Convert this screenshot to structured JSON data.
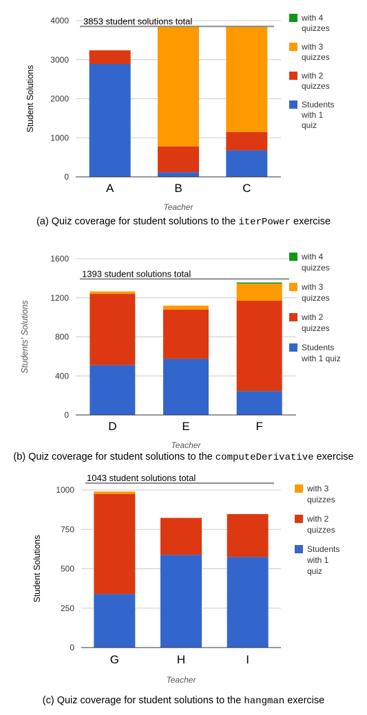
{
  "charts": [
    {
      "caption_prefix": "(a) Quiz coverage for student solutions to the ",
      "caption_code": "iterPower",
      "caption_suffix": " exercise",
      "chart_data": {
        "type": "bar",
        "stacked": true,
        "categories": [
          "A",
          "B",
          "C"
        ],
        "series": [
          {
            "name": "Students with 1 quiz",
            "legend_lines": [
              "Students",
              "with 1",
              "quiz"
            ],
            "color": "#3366cc",
            "values": [
              2890,
              120,
              680
            ]
          },
          {
            "name": "with 2 quizzes",
            "legend_lines": [
              "with 2",
              "quizzes"
            ],
            "color": "#dc3912",
            "values": [
              350,
              660,
              470
            ]
          },
          {
            "name": "with 3 quizzes",
            "legend_lines": [
              "with 3",
              "quizzes"
            ],
            "color": "#ff9900",
            "values": [
              0,
              3073,
              2703
            ]
          },
          {
            "name": "with 4 quizzes",
            "legend_lines": [
              "with 4",
              "quizzes"
            ],
            "color": "#109618",
            "values": [
              0,
              0,
              0
            ]
          }
        ],
        "ylabel": "Student Solutions",
        "ylabel_italic": false,
        "xlabel": "Teacher",
        "ylim": [
          0,
          4000
        ],
        "yticks": [
          0,
          1000,
          2000,
          3000,
          4000
        ],
        "ytick_labels": [
          "0",
          "1000",
          "2000",
          "3000",
          "4000"
        ],
        "reference_value": 3853,
        "reference_label": "3853 student solutions total",
        "grid": true,
        "legend": "right"
      }
    },
    {
      "caption_prefix": "(b) Quiz coverage for student solutions to the ",
      "caption_code": "computeDerivative",
      "caption_suffix": " exercise",
      "chart_data": {
        "type": "bar",
        "stacked": true,
        "categories": [
          "D",
          "E",
          "F"
        ],
        "series": [
          {
            "name": "Students with 1 quiz",
            "legend_lines": [
              "Students",
              "with 1 quiz"
            ],
            "color": "#3366cc",
            "values": [
              510,
              575,
              245
            ]
          },
          {
            "name": "with 2 quizzes",
            "legend_lines": [
              "with 2",
              "quizzes"
            ],
            "color": "#dc3912",
            "values": [
              730,
              505,
              925
            ]
          },
          {
            "name": "with 3 quizzes",
            "legend_lines": [
              "with 3",
              "quizzes"
            ],
            "color": "#ff9900",
            "values": [
              25,
              40,
              175
            ]
          },
          {
            "name": "with 4 quizzes",
            "legend_lines": [
              "with 4",
              "quizzes"
            ],
            "color": "#109618",
            "values": [
              0,
              0,
              12
            ]
          }
        ],
        "ylabel": "Students' Solutions",
        "ylabel_italic": true,
        "xlabel": "Teacher",
        "ylim": [
          0,
          1600
        ],
        "yticks": [
          0,
          400,
          800,
          1200,
          1600
        ],
        "ytick_labels": [
          "0",
          "400",
          "800",
          "1200",
          "1600"
        ],
        "reference_value": 1393,
        "reference_label": "1393 student solutions total",
        "grid": true,
        "legend": "right"
      }
    },
    {
      "caption_prefix": "(c) Quiz coverage for student solutions to the ",
      "caption_code": "hangman",
      "caption_suffix": " exercise",
      "chart_data": {
        "type": "bar",
        "stacked": true,
        "categories": [
          "G",
          "H",
          "I"
        ],
        "series": [
          {
            "name": "Students with 1 quiz",
            "legend_lines": [
              "Students",
              "with 1",
              "quiz"
            ],
            "color": "#3366cc",
            "values": [
              340,
              588,
              575
            ]
          },
          {
            "name": "with 2 quizzes",
            "legend_lines": [
              "with 2",
              "quizzes"
            ],
            "color": "#dc3912",
            "values": [
              635,
              235,
              272
            ]
          },
          {
            "name": "with 3 quizzes",
            "legend_lines": [
              "with 3",
              "quizzes"
            ],
            "color": "#ff9900",
            "values": [
              15,
              0,
              0
            ]
          }
        ],
        "ylabel": "Student Solutions",
        "ylabel_italic": false,
        "xlabel": "Teacher",
        "ylim": [
          0,
          1000
        ],
        "yticks": [
          0,
          250,
          500,
          750,
          1000
        ],
        "ytick_labels": [
          "0",
          "250",
          "500",
          "750",
          "1000"
        ],
        "reference_value": 1043,
        "reference_label": "1043 student solutions total",
        "grid": true,
        "legend": "right"
      }
    }
  ]
}
